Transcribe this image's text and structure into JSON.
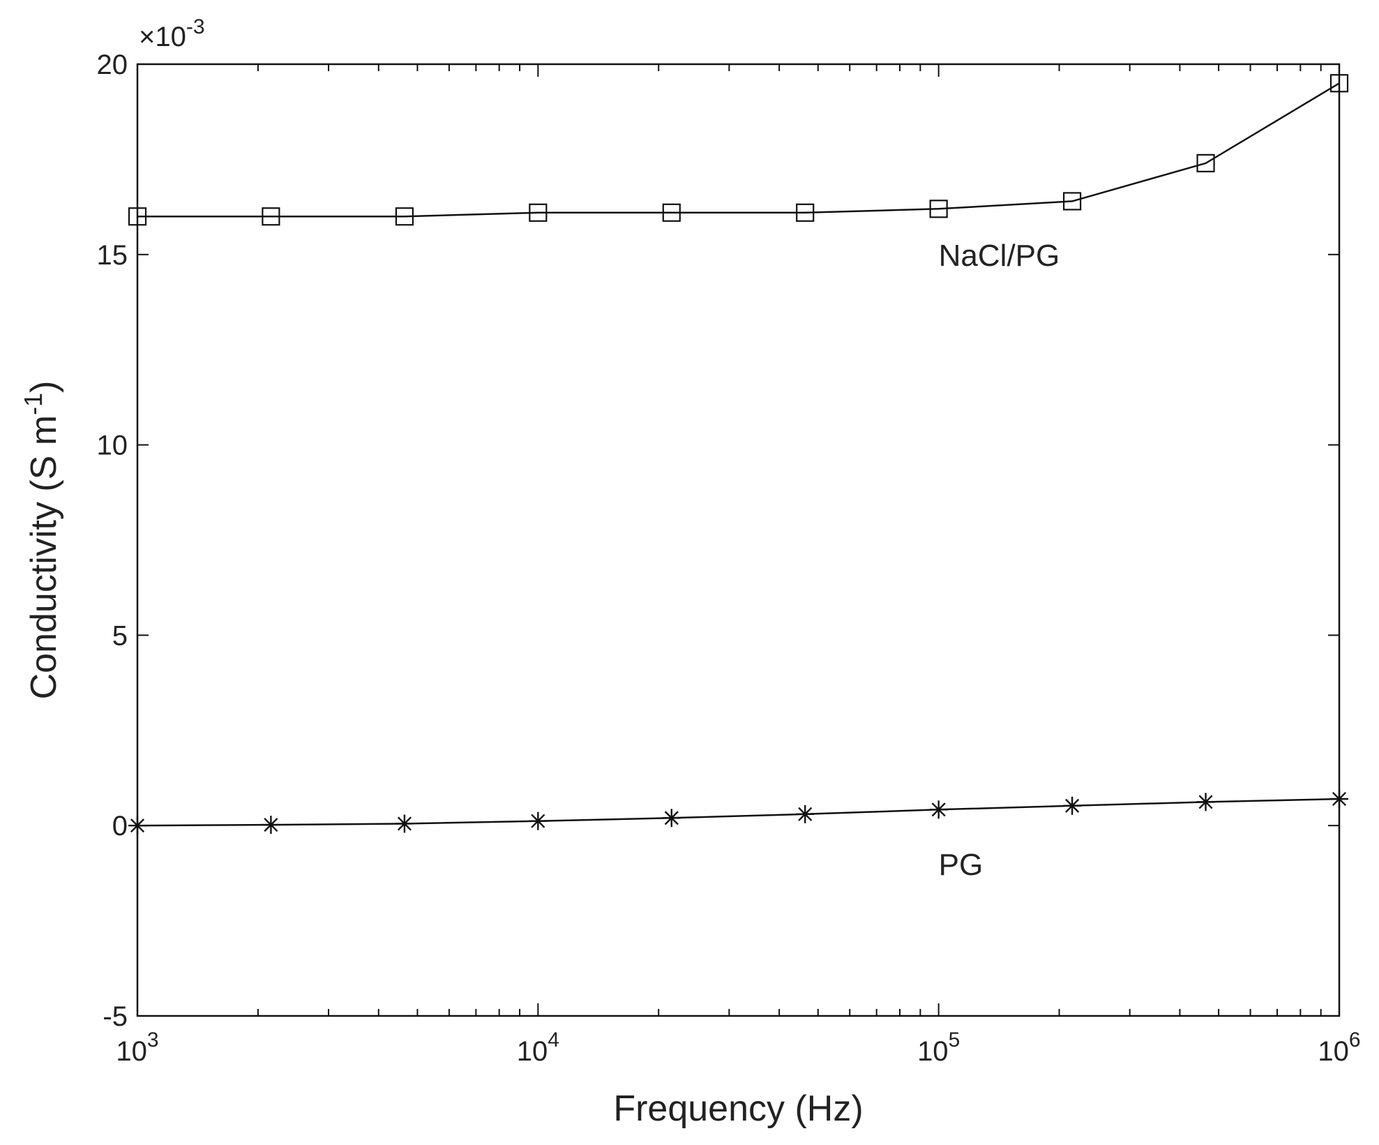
{
  "chart_data": {
    "type": "line",
    "xlabel": "Frequency (Hz)",
    "ylabel_main": "Conductivity (S m",
    "ylabel_exp": "-1",
    "ylabel_close": ")",
    "y_multiplier_base": "×10",
    "y_multiplier_exp": "-3",
    "xscale": "log",
    "xlim": [
      1000,
      1000000
    ],
    "ylim": [
      -5,
      20
    ],
    "y_ticks": [
      -5,
      0,
      5,
      10,
      15,
      20
    ],
    "x_ticks": [
      {
        "value": 1000,
        "base": "10",
        "exp": "3"
      },
      {
        "value": 10000,
        "base": "10",
        "exp": "4"
      },
      {
        "value": 100000,
        "base": "10",
        "exp": "5"
      },
      {
        "value": 1000000,
        "base": "10",
        "exp": "6"
      }
    ],
    "grid": false,
    "legend": "none",
    "series": [
      {
        "name": "NaCl/PG",
        "marker": "square",
        "label_pos": {
          "x": 100000,
          "y": 15
        },
        "x": [
          1000,
          2154,
          4642,
          10000,
          21544,
          46416,
          100000,
          215443,
          464159,
          1000000
        ],
        "y": [
          16.0,
          16.0,
          16.0,
          16.1,
          16.1,
          16.1,
          16.2,
          16.4,
          17.4,
          19.5
        ]
      },
      {
        "name": "PG",
        "marker": "star",
        "label_pos": {
          "x": 100000,
          "y": -1
        },
        "x": [
          1000,
          2154,
          4642,
          10000,
          21544,
          46416,
          100000,
          215443,
          464159,
          1000000
        ],
        "y": [
          0.0,
          0.02,
          0.05,
          0.12,
          0.2,
          0.3,
          0.42,
          0.52,
          0.62,
          0.7
        ]
      }
    ]
  }
}
